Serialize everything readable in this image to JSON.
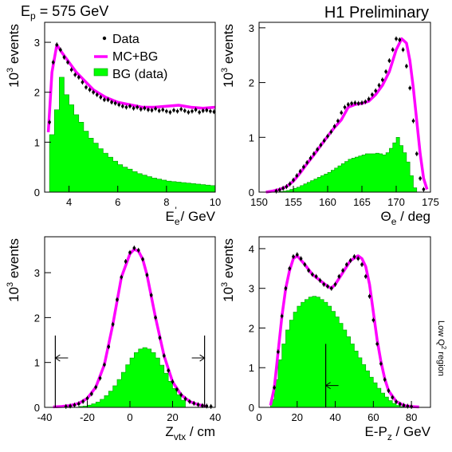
{
  "header": {
    "beam_label": "E",
    "beam_sub": "p",
    "beam_value": " = 575 GeV",
    "collab": "H1 Preliminary",
    "side_label_pre": "Low Q",
    "side_label_sup": "2",
    "side_label_post": " region"
  },
  "legend": {
    "data": "Data",
    "mc": "MC+BG",
    "bg": "BG (data)"
  },
  "colors": {
    "mc": "#ff00ff",
    "bg": "#00ff00",
    "bg_edge": "#009900",
    "data": "#000000"
  },
  "chart_data": [
    {
      "type": "histogram+line+scatter",
      "xlabel": "E'e / GeV",
      "xlabel_main": "E",
      "xlabel_sub": "e",
      "xlabel_sup": "'",
      "xlabel_unit": " / GeV",
      "ylabel_pre": "10",
      "ylabel_sup": "3",
      "ylabel_post": " events",
      "xlim": [
        3,
        10
      ],
      "ylim": [
        0,
        3.4
      ],
      "xticks": [
        4,
        6,
        8,
        10
      ],
      "yticks": [
        0,
        1,
        2,
        3
      ],
      "series": [
        {
          "name": "Data",
          "x": [
            3.2,
            3.35,
            3.5,
            3.65,
            3.8,
            3.95,
            4.1,
            4.25,
            4.4,
            4.55,
            4.7,
            4.85,
            5.0,
            5.15,
            5.3,
            5.45,
            5.6,
            5.75,
            5.9,
            6.05,
            6.2,
            6.35,
            6.5,
            6.65,
            6.8,
            6.95,
            7.1,
            7.25,
            7.4,
            7.55,
            7.7,
            7.85,
            8.0,
            8.15,
            8.3,
            8.45,
            8.6,
            8.75,
            8.9,
            9.05,
            9.2,
            9.35,
            9.5,
            9.65,
            9.8,
            9.95
          ],
          "values": [
            1.4,
            2.6,
            2.95,
            2.85,
            2.7,
            2.6,
            2.45,
            2.35,
            2.3,
            2.2,
            2.1,
            2.05,
            2.0,
            1.95,
            1.9,
            1.85,
            1.85,
            1.8,
            1.78,
            1.75,
            1.72,
            1.7,
            1.72,
            1.68,
            1.7,
            1.66,
            1.68,
            1.65,
            1.64,
            1.67,
            1.63,
            1.65,
            1.62,
            1.6,
            1.64,
            1.62,
            1.66,
            1.63,
            1.6,
            1.62,
            1.65,
            1.6,
            1.63,
            1.64,
            1.62,
            1.61
          ]
        },
        {
          "name": "MC+BG",
          "x": [
            3.15,
            3.3,
            3.5,
            3.7,
            4.0,
            4.3,
            4.6,
            5.0,
            5.5,
            6.0,
            6.5,
            7.0,
            7.5,
            8.0,
            8.5,
            9.0,
            9.5,
            10.0
          ],
          "values": [
            1.2,
            2.4,
            2.95,
            2.8,
            2.6,
            2.4,
            2.25,
            2.05,
            1.9,
            1.8,
            1.75,
            1.7,
            1.7,
            1.72,
            1.74,
            1.7,
            1.68,
            1.7
          ]
        },
        {
          "name": "BG (data)",
          "bin_edges_start": 3.2,
          "bin_width": 0.2,
          "values": [
            1.15,
            1.65,
            2.3,
            1.95,
            1.75,
            1.55,
            1.4,
            1.22,
            1.08,
            0.98,
            0.87,
            0.78,
            0.7,
            0.62,
            0.55,
            0.5,
            0.46,
            0.41,
            0.37,
            0.34,
            0.31,
            0.28,
            0.26,
            0.24,
            0.22,
            0.21,
            0.2,
            0.19,
            0.18,
            0.17,
            0.16,
            0.15,
            0.14,
            0.13,
            0.13
          ]
        }
      ]
    },
    {
      "type": "histogram+line+scatter",
      "xlabel_main": "Θ",
      "xlabel_sub": "e",
      "xlabel_sup": "",
      "xlabel_unit": " / deg",
      "ylabel_pre": "10",
      "ylabel_sup": "3",
      "ylabel_post": " events",
      "xlim": [
        150,
        175
      ],
      "ylim": [
        0,
        3.1
      ],
      "xticks": [
        150,
        155,
        160,
        165,
        170,
        175
      ],
      "yticks": [
        0,
        1,
        2,
        3
      ],
      "series": [
        {
          "name": "Data",
          "x": [
            152.5,
            153,
            153.5,
            154,
            154.5,
            155,
            155.5,
            156,
            156.5,
            157,
            157.5,
            158,
            158.5,
            159,
            159.5,
            160,
            160.5,
            161,
            161.5,
            162,
            162.5,
            163,
            163.5,
            164,
            164.5,
            165,
            165.5,
            166,
            166.5,
            167,
            167.5,
            168,
            168.5,
            169,
            169.5,
            170,
            170.5,
            171,
            171.5,
            172,
            172.5,
            173,
            173.5,
            174
          ],
          "values": [
            0.02,
            0.04,
            0.07,
            0.1,
            0.15,
            0.22,
            0.3,
            0.38,
            0.46,
            0.54,
            0.62,
            0.7,
            0.78,
            0.86,
            0.94,
            1.02,
            1.1,
            1.2,
            1.3,
            1.45,
            1.55,
            1.6,
            1.62,
            1.63,
            1.62,
            1.63,
            1.65,
            1.7,
            1.78,
            1.85,
            1.95,
            2.05,
            2.2,
            2.4,
            2.6,
            2.8,
            2.78,
            2.6,
            2.3,
            1.9,
            1.3,
            0.7,
            0.25,
            0.05
          ]
        },
        {
          "name": "MC+BG",
          "x": [
            151,
            152,
            153,
            154,
            155,
            156,
            157,
            158,
            159,
            160,
            161,
            162,
            163,
            164,
            165,
            166,
            167,
            168,
            169,
            170,
            170.8,
            171.5,
            172,
            172.5,
            173,
            173.5,
            174,
            174.5
          ],
          "values": [
            0.0,
            0.02,
            0.05,
            0.1,
            0.2,
            0.35,
            0.52,
            0.68,
            0.85,
            1.02,
            1.18,
            1.32,
            1.55,
            1.6,
            1.62,
            1.66,
            1.78,
            1.95,
            2.2,
            2.6,
            2.8,
            2.72,
            2.4,
            1.9,
            1.3,
            0.7,
            0.25,
            0.05
          ]
        },
        {
          "name": "BG (data)",
          "bin_edges_start": 153,
          "bin_width": 0.5,
          "values": [
            0.01,
            0.02,
            0.03,
            0.05,
            0.07,
            0.09,
            0.12,
            0.15,
            0.18,
            0.21,
            0.24,
            0.27,
            0.3,
            0.33,
            0.36,
            0.4,
            0.44,
            0.48,
            0.52,
            0.56,
            0.6,
            0.62,
            0.64,
            0.66,
            0.68,
            0.7,
            0.7,
            0.7,
            0.71,
            0.7,
            0.68,
            0.72,
            0.8,
            0.9,
            1.0,
            0.85,
            0.72,
            0.55,
            0.3,
            0.08
          ]
        }
      ]
    },
    {
      "type": "histogram+line+scatter",
      "xlabel_main": "Z",
      "xlabel_sub": "vtx",
      "xlabel_sup": "",
      "xlabel_unit": " / cm",
      "ylabel_pre": "10",
      "ylabel_sup": "3",
      "ylabel_post": " events",
      "xlim": [
        -40,
        40
      ],
      "ylim": [
        0,
        3.8
      ],
      "xticks": [
        -40,
        -20,
        0,
        20,
        40
      ],
      "yticks": [
        0,
        1,
        2,
        3
      ],
      "cuts": [
        -35,
        35
      ],
      "series": [
        {
          "name": "Data",
          "x": [
            -30,
            -28,
            -26,
            -24,
            -22,
            -20,
            -18,
            -16,
            -14,
            -12,
            -10,
            -8,
            -6,
            -4,
            -2,
            0,
            2,
            4,
            6,
            8,
            10,
            12,
            14,
            16,
            18,
            20,
            22,
            24,
            26,
            28,
            30,
            32,
            34,
            36,
            38
          ],
          "values": [
            0.02,
            0.03,
            0.05,
            0.08,
            0.13,
            0.2,
            0.3,
            0.45,
            0.65,
            0.95,
            1.35,
            1.85,
            2.4,
            2.9,
            3.25,
            3.45,
            3.55,
            3.5,
            3.3,
            2.95,
            2.5,
            2.0,
            1.55,
            1.15,
            0.82,
            0.57,
            0.4,
            0.28,
            0.19,
            0.13,
            0.09,
            0.06,
            0.04,
            0.03,
            0.02
          ]
        },
        {
          "name": "MC+BG",
          "x": [
            -36,
            -32,
            -28,
            -24,
            -20,
            -16,
            -12,
            -8,
            -4,
            0,
            2,
            4,
            6,
            8,
            12,
            16,
            20,
            24,
            28,
            32,
            36
          ],
          "values": [
            0.01,
            0.02,
            0.04,
            0.09,
            0.2,
            0.45,
            0.95,
            1.85,
            2.9,
            3.42,
            3.52,
            3.48,
            3.3,
            2.95,
            2.0,
            1.15,
            0.57,
            0.28,
            0.13,
            0.06,
            0.02
          ]
        },
        {
          "name": "BG (data)",
          "bin_edges_start": -24,
          "bin_width": 2,
          "values": [
            0.02,
            0.03,
            0.05,
            0.08,
            0.12,
            0.18,
            0.26,
            0.36,
            0.48,
            0.62,
            0.78,
            0.95,
            1.1,
            1.22,
            1.3,
            1.33,
            1.3,
            1.22,
            1.1,
            0.94,
            0.76,
            0.58,
            0.42,
            0.28,
            0.16
          ]
        }
      ]
    },
    {
      "type": "histogram+line+scatter",
      "xlabel_main": "E-P",
      "xlabel_sub": "z",
      "xlabel_sup": "",
      "xlabel_unit": " / GeV",
      "ylabel_pre": "10",
      "ylabel_sup": "3",
      "ylabel_post": " events",
      "xlim": [
        0,
        90
      ],
      "ylim": [
        0,
        4.3
      ],
      "xticks": [
        0,
        20,
        40,
        60,
        80
      ],
      "yticks": [
        0,
        1,
        2,
        3,
        4
      ],
      "cuts": [
        35
      ],
      "series": [
        {
          "name": "Data",
          "x": [
            8,
            10,
            12,
            14,
            16,
            18,
            20,
            22,
            24,
            26,
            28,
            30,
            32,
            34,
            36,
            38,
            40,
            42,
            44,
            46,
            48,
            50,
            52,
            54,
            56,
            58,
            60,
            62,
            64,
            66,
            68,
            70,
            72,
            74,
            76,
            78,
            80
          ],
          "values": [
            0.5,
            1.4,
            2.3,
            3.0,
            3.5,
            3.8,
            3.85,
            3.75,
            3.6,
            3.45,
            3.35,
            3.3,
            3.2,
            3.1,
            3.05,
            3.0,
            3.1,
            3.3,
            3.45,
            3.6,
            3.7,
            3.8,
            3.75,
            3.6,
            3.3,
            2.8,
            2.2,
            1.6,
            1.1,
            0.7,
            0.42,
            0.25,
            0.14,
            0.08,
            0.05,
            0.03,
            0.02
          ]
        },
        {
          "name": "MC+BG",
          "x": [
            6,
            8,
            10,
            12,
            14,
            16,
            18,
            20,
            24,
            28,
            32,
            36,
            38,
            40,
            44,
            48,
            52,
            54,
            56,
            58,
            60,
            62,
            64,
            66,
            68,
            72,
            76,
            80,
            84
          ],
          "values": [
            0.05,
            0.5,
            1.4,
            2.3,
            3.0,
            3.45,
            3.75,
            3.82,
            3.6,
            3.35,
            3.2,
            3.05,
            3.0,
            3.1,
            3.4,
            3.7,
            3.82,
            3.75,
            3.55,
            3.1,
            2.4,
            1.7,
            1.15,
            0.72,
            0.42,
            0.15,
            0.05,
            0.02,
            0.01
          ]
        },
        {
          "name": "BG (data)",
          "bin_edges_start": 6,
          "bin_width": 2,
          "values": [
            0.2,
            0.7,
            1.2,
            1.6,
            1.95,
            2.2,
            2.4,
            2.55,
            2.65,
            2.72,
            2.78,
            2.8,
            2.78,
            2.72,
            2.65,
            2.55,
            2.42,
            2.28,
            2.12,
            1.95,
            1.78,
            1.6,
            1.42,
            1.25,
            1.08,
            0.92,
            0.76,
            0.62,
            0.48,
            0.36,
            0.26,
            0.17,
            0.1,
            0.05,
            0.02
          ]
        }
      ]
    }
  ]
}
